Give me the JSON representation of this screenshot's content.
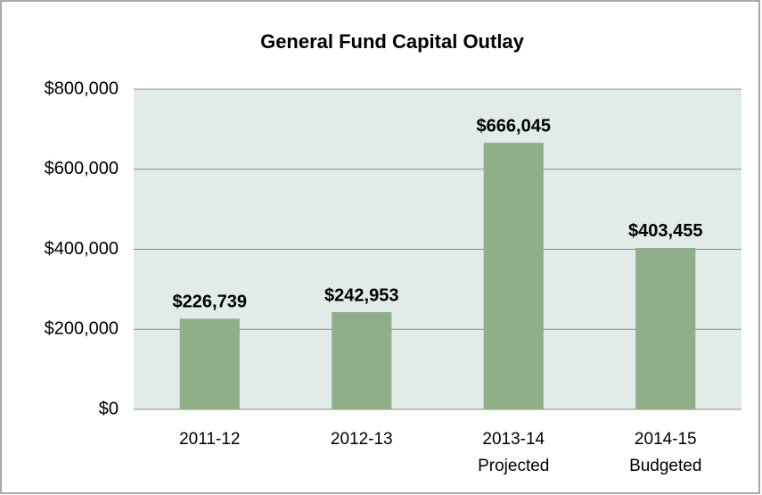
{
  "chart_data": {
    "type": "bar",
    "title": "General Fund Capital Outlay",
    "categories": [
      [
        "2011-12"
      ],
      [
        "2012-13"
      ],
      [
        "2013-14",
        "Projected"
      ],
      [
        "2014-15",
        "Budgeted"
      ]
    ],
    "values": [
      226739,
      242953,
      666045,
      403455
    ],
    "value_labels": [
      "$226,739",
      "$242,953",
      "$666,045",
      "$403,455"
    ],
    "color": "#8faf88",
    "ylim": [
      0,
      800000
    ],
    "yticks": [
      {
        "value": 0,
        "label": "$0"
      },
      {
        "value": 200000,
        "label": "$200,000"
      },
      {
        "value": 400000,
        "label": "$400,000"
      },
      {
        "value": 600000,
        "label": "$600,000"
      },
      {
        "value": 800000,
        "label": "$800,000"
      }
    ],
    "grid": true
  }
}
